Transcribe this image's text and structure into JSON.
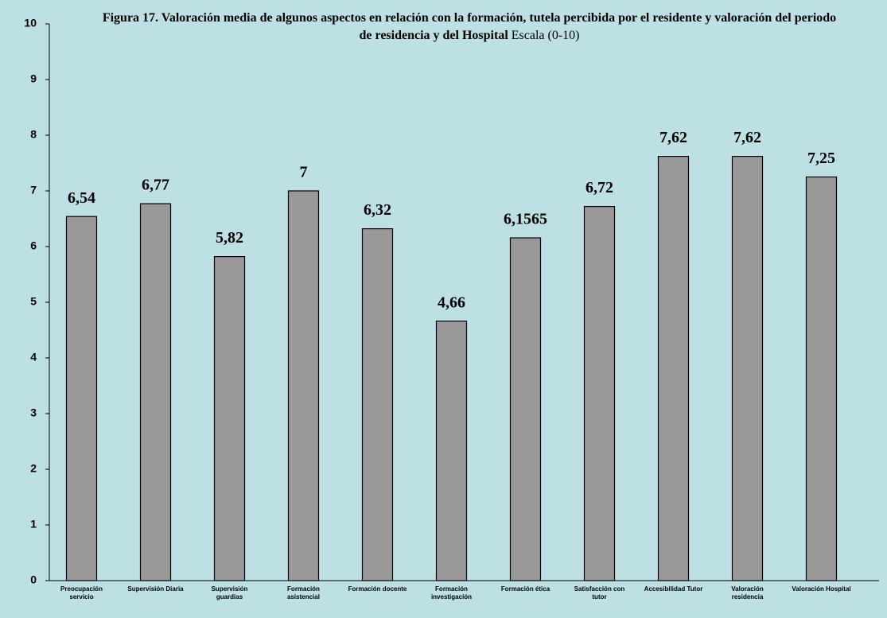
{
  "chart_data": {
    "type": "bar",
    "title": "Figura 17. Valoración media de algunos aspectos en relación con la formación, tutela percibida por el residente y valoración del periodo de residencia y del Hospital",
    "subtitle": "Escala (0-10)",
    "categories": [
      "Preocupación servicio",
      "Supervisión Diaria",
      "Supervisión guardias",
      "Formación asistencial",
      "Formación docente",
      "Formación investigación",
      "Formación ética",
      "Satisfacción con tutor",
      "Accesibilidad Tutor",
      "Valoración residencia",
      "Valoración Hospital"
    ],
    "values": [
      6.54,
      6.77,
      5.82,
      7,
      6.32,
      4.66,
      6.1565,
      6.72,
      7.62,
      7.62,
      7.25
    ],
    "value_labels": [
      "6,54",
      "6,77",
      "5,82",
      "7",
      "6,32",
      "4,66",
      "6,1565",
      "6,72",
      "7,62",
      "7,62",
      "7,25"
    ],
    "color": "#999999",
    "ylim": [
      0,
      10
    ],
    "yticks": [
      0,
      1,
      2,
      3,
      4,
      5,
      6,
      7,
      8,
      9,
      10
    ],
    "grid": false
  }
}
